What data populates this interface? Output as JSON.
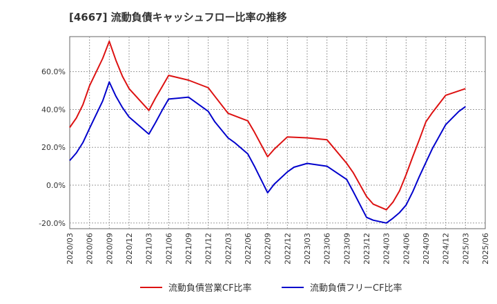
{
  "chart_data": {
    "type": "line",
    "title": "[4667]  流動負債キャッシュフロー比率の推移",
    "xlabel": "",
    "ylabel": "",
    "x_ticks": [
      "2020/03",
      "2020/06",
      "2020/09",
      "2020/12",
      "2021/03",
      "2021/06",
      "2021/09",
      "2021/12",
      "2022/03",
      "2022/06",
      "2022/09",
      "2022/12",
      "2023/03",
      "2023/06",
      "2023/09",
      "2023/12",
      "2024/03",
      "2024/06",
      "2024/09",
      "2024/12",
      "2025/03",
      "2025/06"
    ],
    "y_ticks": [
      "60.0%",
      "40.0%",
      "20.0%",
      "0.0%",
      "-20.0%"
    ],
    "y_tick_values": [
      60,
      40,
      20,
      0,
      -20
    ],
    "ylim": [
      -23,
      78.5
    ],
    "grid": true,
    "legend_position": "bottom",
    "series": [
      {
        "name": "流動負債営業CF比率",
        "color": "#dd1111",
        "points": [
          [
            "2020/03",
            30.5
          ],
          [
            "2020/04",
            35.5
          ],
          [
            "2020/05",
            42.5
          ],
          [
            "2020/06",
            52.5
          ],
          [
            "2020/08",
            67.0
          ],
          [
            "2020/09",
            76.0
          ],
          [
            "2020/10",
            66.0
          ],
          [
            "2020/11",
            57.5
          ],
          [
            "2020/12",
            51.0
          ],
          [
            "2021/03",
            39.5
          ],
          [
            "2021/04",
            46.0
          ],
          [
            "2021/05",
            52.0
          ],
          [
            "2021/06",
            58.0
          ],
          [
            "2021/09",
            55.5
          ],
          [
            "2021/12",
            51.5
          ],
          [
            "2022/01",
            47.0
          ],
          [
            "2022/03",
            38.0
          ],
          [
            "2022/06",
            34.0
          ],
          [
            "2022/07",
            28.0
          ],
          [
            "2022/09",
            15.0
          ],
          [
            "2022/10",
            19.0
          ],
          [
            "2022/12",
            25.5
          ],
          [
            "2023/03",
            25.0
          ],
          [
            "2023/06",
            24.0
          ],
          [
            "2023/09",
            11.5
          ],
          [
            "2023/10",
            6.5
          ],
          [
            "2023/12",
            -6.0
          ],
          [
            "2024/01",
            -10.0
          ],
          [
            "2024/03",
            -13.0
          ],
          [
            "2024/04",
            -9.0
          ],
          [
            "2024/05",
            -3.0
          ],
          [
            "2024/06",
            5.5
          ],
          [
            "2024/07",
            15.0
          ],
          [
            "2024/08",
            24.0
          ],
          [
            "2024/09",
            33.5
          ],
          [
            "2024/10",
            38.5
          ],
          [
            "2024/12",
            47.5
          ],
          [
            "2025/03",
            51.0
          ]
        ]
      },
      {
        "name": "流動負債フリーCF比率",
        "color": "#0000cc",
        "points": [
          [
            "2020/03",
            13.0
          ],
          [
            "2020/04",
            17.0
          ],
          [
            "2020/05",
            22.5
          ],
          [
            "2020/06",
            30.0
          ],
          [
            "2020/08",
            44.5
          ],
          [
            "2020/09",
            54.5
          ],
          [
            "2020/10",
            47.0
          ],
          [
            "2020/11",
            41.0
          ],
          [
            "2020/12",
            36.0
          ],
          [
            "2021/03",
            27.0
          ],
          [
            "2021/04",
            33.0
          ],
          [
            "2021/05",
            39.5
          ],
          [
            "2021/06",
            45.5
          ],
          [
            "2021/09",
            46.5
          ],
          [
            "2021/12",
            39.0
          ],
          [
            "2022/01",
            33.5
          ],
          [
            "2022/03",
            25.0
          ],
          [
            "2022/04",
            22.5
          ],
          [
            "2022/06",
            16.5
          ],
          [
            "2022/07",
            10.0
          ],
          [
            "2022/09",
            -4.0
          ],
          [
            "2022/10",
            0.5
          ],
          [
            "2022/12",
            7.0
          ],
          [
            "2023/01",
            9.5
          ],
          [
            "2023/03",
            11.5
          ],
          [
            "2023/06",
            10.0
          ],
          [
            "2023/09",
            3.0
          ],
          [
            "2023/10",
            -3.5
          ],
          [
            "2023/12",
            -17.0
          ],
          [
            "2024/01",
            -18.5
          ],
          [
            "2024/03",
            -20.0
          ],
          [
            "2024/04",
            -17.5
          ],
          [
            "2024/05",
            -14.5
          ],
          [
            "2024/06",
            -10.5
          ],
          [
            "2024/07",
            -3.5
          ],
          [
            "2024/08",
            4.5
          ],
          [
            "2024/09",
            12.0
          ],
          [
            "2024/10",
            19.5
          ],
          [
            "2024/12",
            32.0
          ],
          [
            "2025/01",
            35.5
          ],
          [
            "2025/02",
            39.0
          ],
          [
            "2025/03",
            41.5
          ]
        ]
      }
    ]
  }
}
